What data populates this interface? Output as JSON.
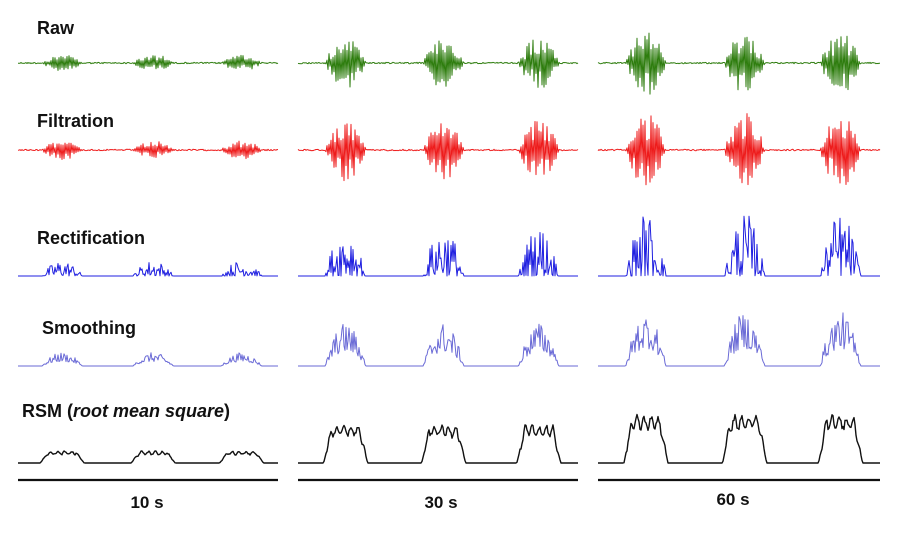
{
  "rows": [
    {
      "key": "raw",
      "label": "Raw",
      "color": "#2e7d0e"
    },
    {
      "key": "filtration",
      "label": "Filtration",
      "color": "#ee1c1c"
    },
    {
      "key": "rectification",
      "label": "Rectification",
      "color": "#1f1fe0"
    },
    {
      "key": "smoothing",
      "label": "Smoothing",
      "color": "#6a6ad6"
    },
    {
      "key": "rms",
      "label_main": "RSM (",
      "label_italic": "root mean square",
      "label_end": ")",
      "color": "#111111"
    }
  ],
  "conditions": [
    {
      "label": "10 s",
      "amplitude": 0.25
    },
    {
      "label": "30 s",
      "amplitude": 0.8
    },
    {
      "label": "60 s",
      "amplitude": 1.0
    }
  ],
  "bursts_per_condition": 3
}
